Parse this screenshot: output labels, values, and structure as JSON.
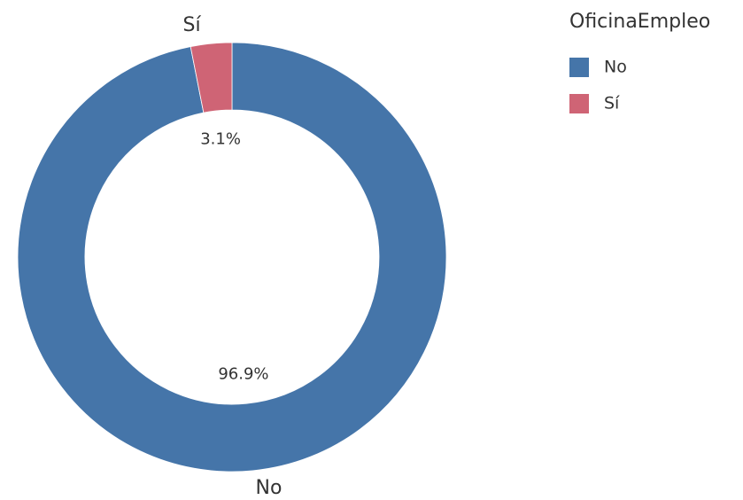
{
  "chart_data": {
    "type": "pie",
    "legend_title": "OficinaEmpleo",
    "categories": [
      "No",
      "Sí"
    ],
    "values": [
      96.9,
      3.1
    ],
    "value_labels": [
      "96.9%",
      "3.1%"
    ],
    "colors": [
      "#4575a9",
      "#cf6475"
    ],
    "donut": true,
    "legend": "right"
  }
}
